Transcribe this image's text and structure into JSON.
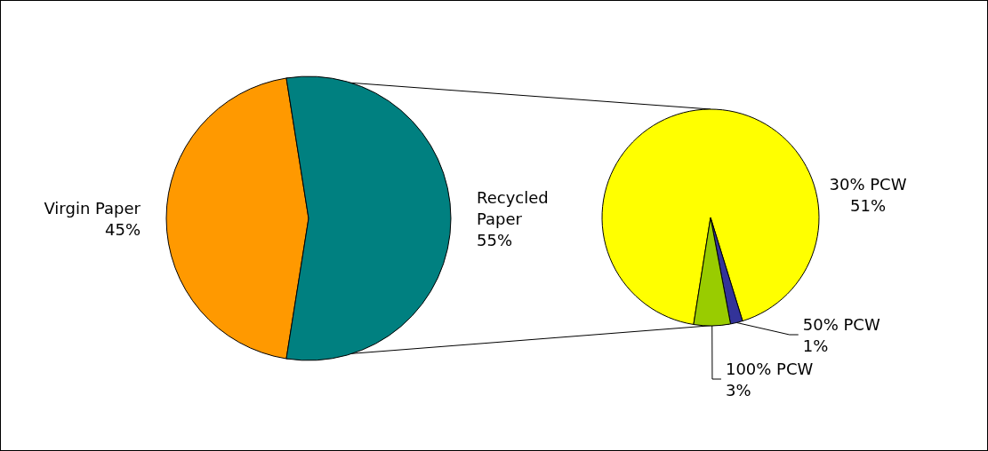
{
  "chart_data": [
    {
      "type": "pie",
      "categories": [
        "Virgin Paper",
        "Recycled Paper"
      ],
      "values": [
        45,
        55
      ],
      "colors": [
        "#ff9900",
        "#008080"
      ],
      "value_labels": [
        "45%",
        "55%"
      ]
    },
    {
      "type": "pie",
      "categories": [
        "30% PCW",
        "50% PCW",
        "100% PCW"
      ],
      "values": [
        51,
        1,
        3
      ],
      "colors": [
        "#ffff00",
        "#333399",
        "#99cc00"
      ],
      "value_labels": [
        "51%",
        "1%",
        "3%"
      ]
    }
  ]
}
